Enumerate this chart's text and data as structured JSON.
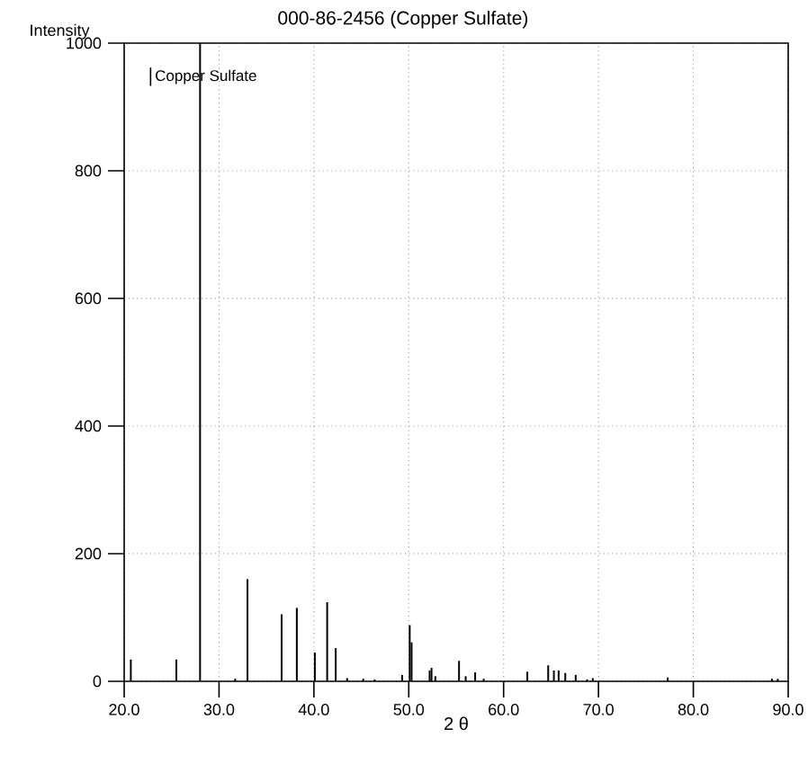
{
  "chart_data": {
    "type": "bar",
    "title": "000-86-2456 (Copper Sulfate)",
    "xlabel": "2 θ",
    "ylabel": "Intensity",
    "x": [
      20.7,
      25.5,
      28.0,
      31.7,
      33.0,
      36.6,
      38.2,
      40.1,
      41.4,
      42.3,
      43.5,
      45.2,
      46.4,
      49.3,
      50.1,
      50.3,
      52.2,
      52.4,
      52.8,
      55.3,
      56.0,
      57.0,
      57.9,
      62.5,
      64.7,
      65.3,
      65.8,
      66.5,
      67.6,
      68.8,
      69.4,
      77.3,
      88.3,
      88.9
    ],
    "series": [
      {
        "name": "Copper Sulfate",
        "color": "#000000",
        "values": [
          34,
          34,
          1000,
          4,
          160,
          105,
          115,
          45,
          124,
          52,
          5,
          4,
          3,
          10,
          88,
          61,
          17,
          21,
          8,
          32,
          8,
          14,
          4,
          15,
          25,
          17,
          17,
          13,
          10,
          3,
          5,
          6,
          4,
          4
        ]
      }
    ],
    "xlim": [
      20,
      90
    ],
    "ylim": [
      0,
      1000
    ],
    "xticks": [
      {
        "value": 20,
        "label": "20.0"
      },
      {
        "value": 30,
        "label": "30.0"
      },
      {
        "value": 40,
        "label": "40.0"
      },
      {
        "value": 50,
        "label": "50.0"
      },
      {
        "value": 60,
        "label": "60.0"
      },
      {
        "value": 70,
        "label": "70.0"
      },
      {
        "value": 80,
        "label": "80.0"
      },
      {
        "value": 90,
        "label": "90.0"
      }
    ],
    "yticks": [
      0,
      200,
      400,
      600,
      800,
      1000
    ],
    "grid": true,
    "legend": "top left"
  }
}
